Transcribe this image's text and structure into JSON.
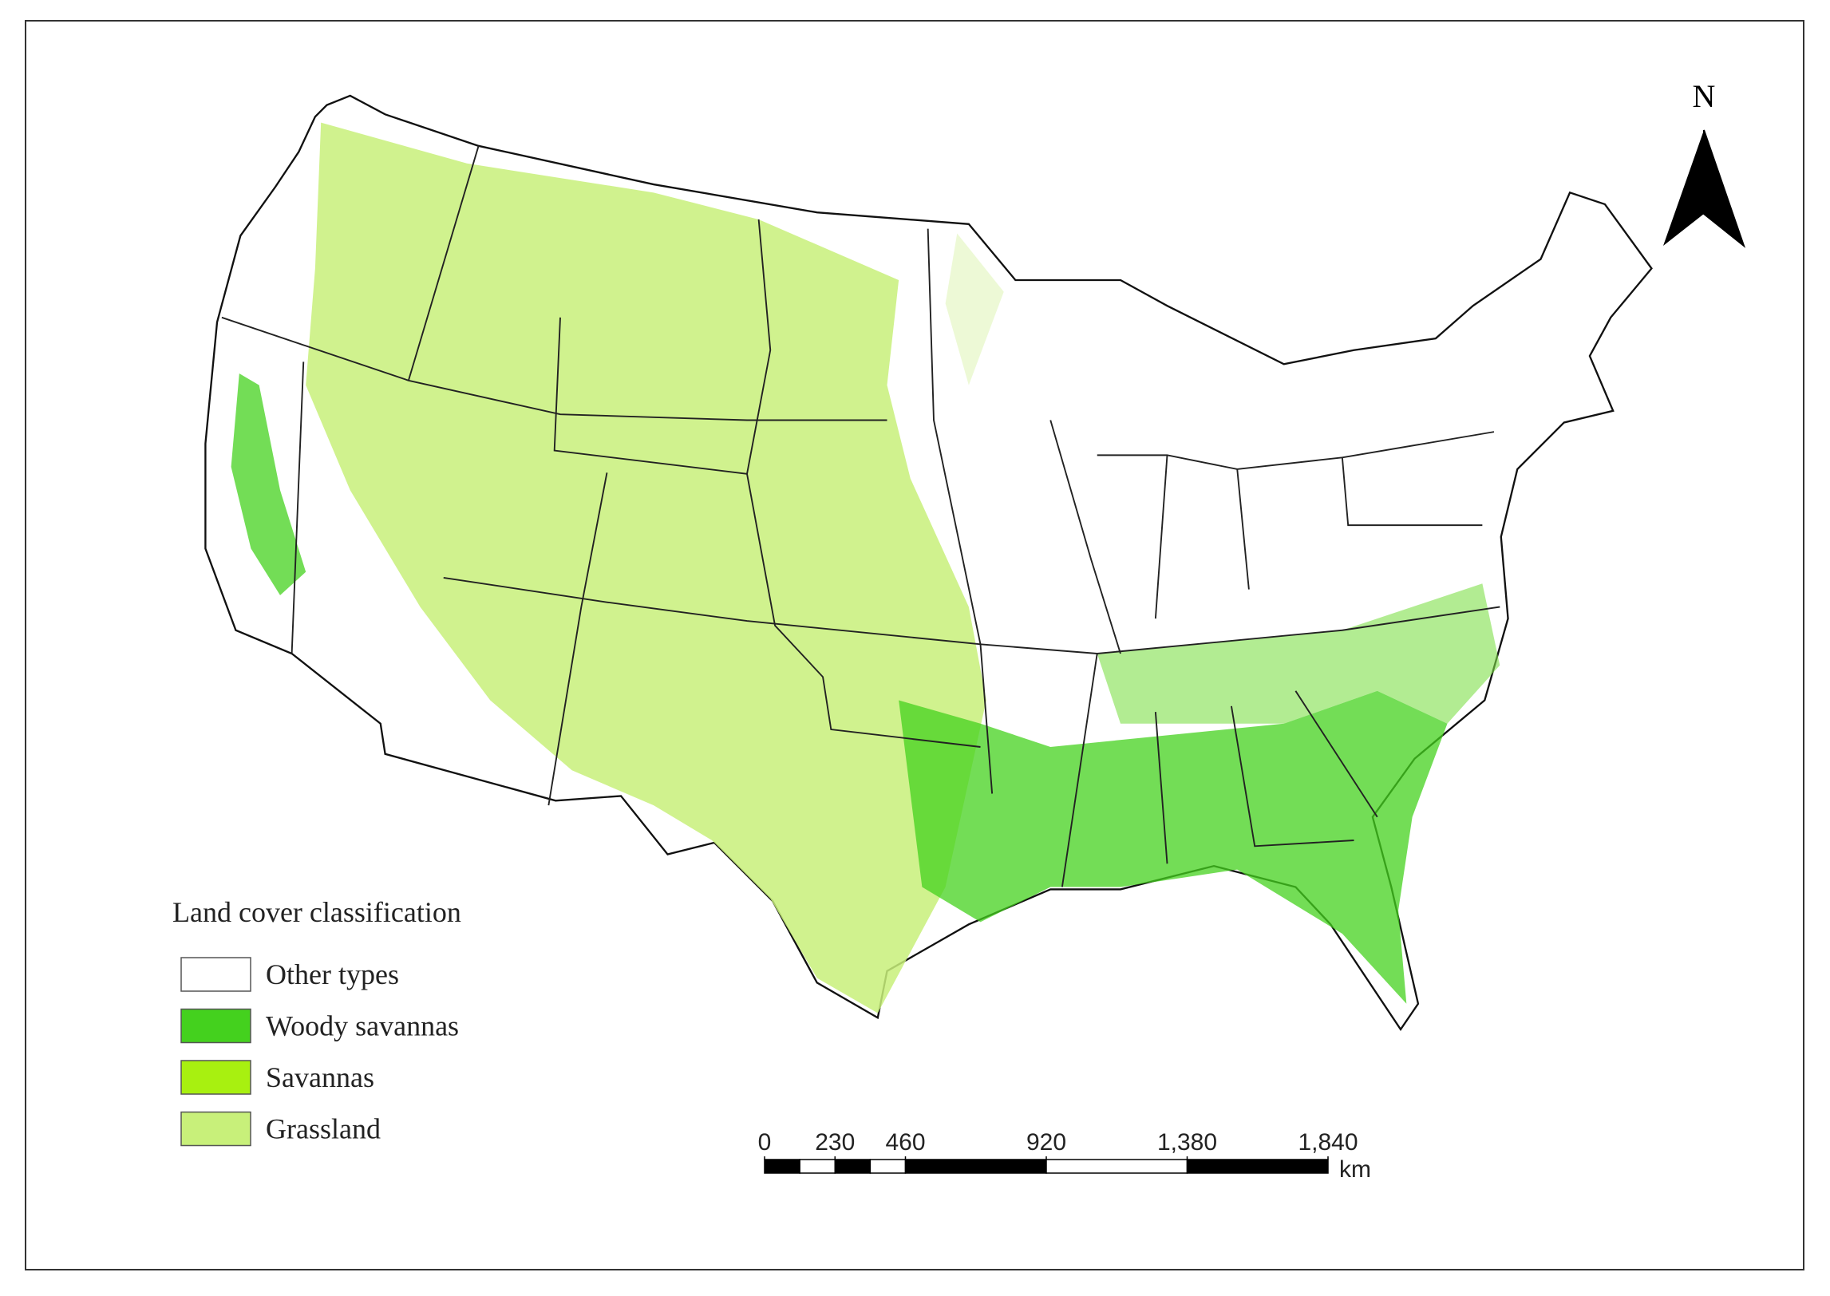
{
  "north_arrow": {
    "label": "N"
  },
  "legend": {
    "title": "Land cover classification",
    "items": [
      {
        "label": "Other types",
        "color": "#ffffff"
      },
      {
        "label": "Woody savannas",
        "color": "#44d11e"
      },
      {
        "label": "Savannas",
        "color": "#a8f010"
      },
      {
        "label": "Grassland",
        "color": "#c8f07a"
      }
    ]
  },
  "scale_bar": {
    "ticks": [
      0,
      230,
      460,
      920,
      {
        "value": 1380,
        "label": "1,380"
      },
      {
        "value": 1840,
        "label": "1,840"
      }
    ],
    "unit": "km"
  }
}
